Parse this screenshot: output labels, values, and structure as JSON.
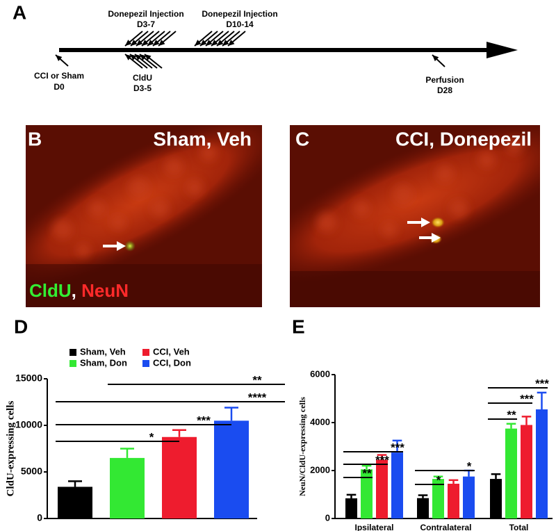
{
  "panel_labels": [
    "A",
    "B",
    "C",
    "D",
    "E"
  ],
  "timeline": {
    "events": [
      {
        "label": "Donepezil Injection",
        "days": "D3-7"
      },
      {
        "label": "Donepezil Injection",
        "days": "D10-14"
      },
      {
        "label": "CCI or Sham",
        "days": "D0"
      },
      {
        "label": "CldU",
        "days": "D3-5"
      },
      {
        "label": "Perfusion",
        "days": "D28"
      }
    ]
  },
  "images": [
    {
      "title": "Sham, Veh",
      "stain_labels": [
        "CldU",
        ",",
        "NeuN"
      ]
    },
    {
      "title": "CCI, Donepezil"
    }
  ],
  "chart_data": [
    {
      "type": "bar",
      "y_label": "CldU-expressing cells",
      "categories": [
        null
      ],
      "series": [
        {
          "name": "Sham, Veh",
          "color": "#000000",
          "values": [
            3400
          ],
          "errors": [
            600
          ]
        },
        {
          "name": "Sham, Don",
          "color": "#33e833",
          "values": [
            6500
          ],
          "errors": [
            1000
          ]
        },
        {
          "name": "CCI, Veh",
          "color": "#ee1c2e",
          "values": [
            8750
          ],
          "errors": [
            750
          ]
        },
        {
          "name": "CCI, Don",
          "color": "#1a4cf0",
          "values": [
            10500
          ],
          "errors": [
            1400
          ]
        }
      ],
      "ylim": [
        0,
        15000
      ],
      "yticks": [
        0,
        5000,
        10000,
        15000
      ],
      "legend": "top",
      "comparisons": [
        {
          "between": [
            "Sham, Veh",
            "Sham, Don"
          ],
          "label": "*"
        },
        {
          "between": [
            "Sham, Veh",
            "CCI, Veh"
          ],
          "label": "***"
        },
        {
          "between": [
            "Sham, Veh",
            "CCI, Don"
          ],
          "label": "****"
        },
        {
          "between": [
            "Sham, Don",
            "CCI, Don"
          ],
          "label": "**"
        }
      ]
    },
    {
      "type": "bar",
      "y_label": "NeuN/CldU-expressing cells",
      "categories": [
        "Ipsilateral",
        "Contralateral",
        "Total"
      ],
      "series": [
        {
          "name": "Sham, Veh",
          "color": "#000000",
          "values": [
            840,
            850,
            1650
          ],
          "errors": [
            150,
            120,
            200
          ]
        },
        {
          "name": "Sham, Don",
          "color": "#33e833",
          "values": [
            2050,
            1650,
            3750
          ],
          "errors": [
            150,
            100,
            200
          ]
        },
        {
          "name": "CCI, Veh",
          "color": "#ee1c2e",
          "values": [
            2450,
            1450,
            3900
          ],
          "errors": [
            200,
            150,
            350
          ]
        },
        {
          "name": "CCI, Don",
          "color": "#1a4cf0",
          "values": [
            2750,
            1750,
            4550
          ],
          "errors": [
            500,
            250,
            700
          ]
        }
      ],
      "ylim": [
        0,
        6000
      ],
      "yticks": [
        0,
        2000,
        4000,
        6000
      ],
      "comparisons": [
        {
          "category": "Ipsilateral",
          "between": [
            "Sham, Veh",
            "Sham, Don"
          ],
          "label": "**"
        },
        {
          "category": "Ipsilateral",
          "between": [
            "Sham, Veh",
            "CCI, Veh"
          ],
          "label": "***"
        },
        {
          "category": "Ipsilateral",
          "between": [
            "Sham, Veh",
            "CCI, Don"
          ],
          "label": "***"
        },
        {
          "category": "Contralateral",
          "between": [
            "Sham, Veh",
            "Sham, Don"
          ],
          "label": "*"
        },
        {
          "category": "Contralateral",
          "between": [
            "Sham, Veh",
            "CCI, Don"
          ],
          "label": "*"
        },
        {
          "category": "Total",
          "between": [
            "Sham, Veh",
            "Sham, Don"
          ],
          "label": "**"
        },
        {
          "category": "Total",
          "between": [
            "Sham, Veh",
            "CCI, Veh"
          ],
          "label": "***"
        },
        {
          "category": "Total",
          "between": [
            "Sham, Veh",
            "CCI, Don"
          ],
          "label": "***"
        }
      ]
    }
  ]
}
